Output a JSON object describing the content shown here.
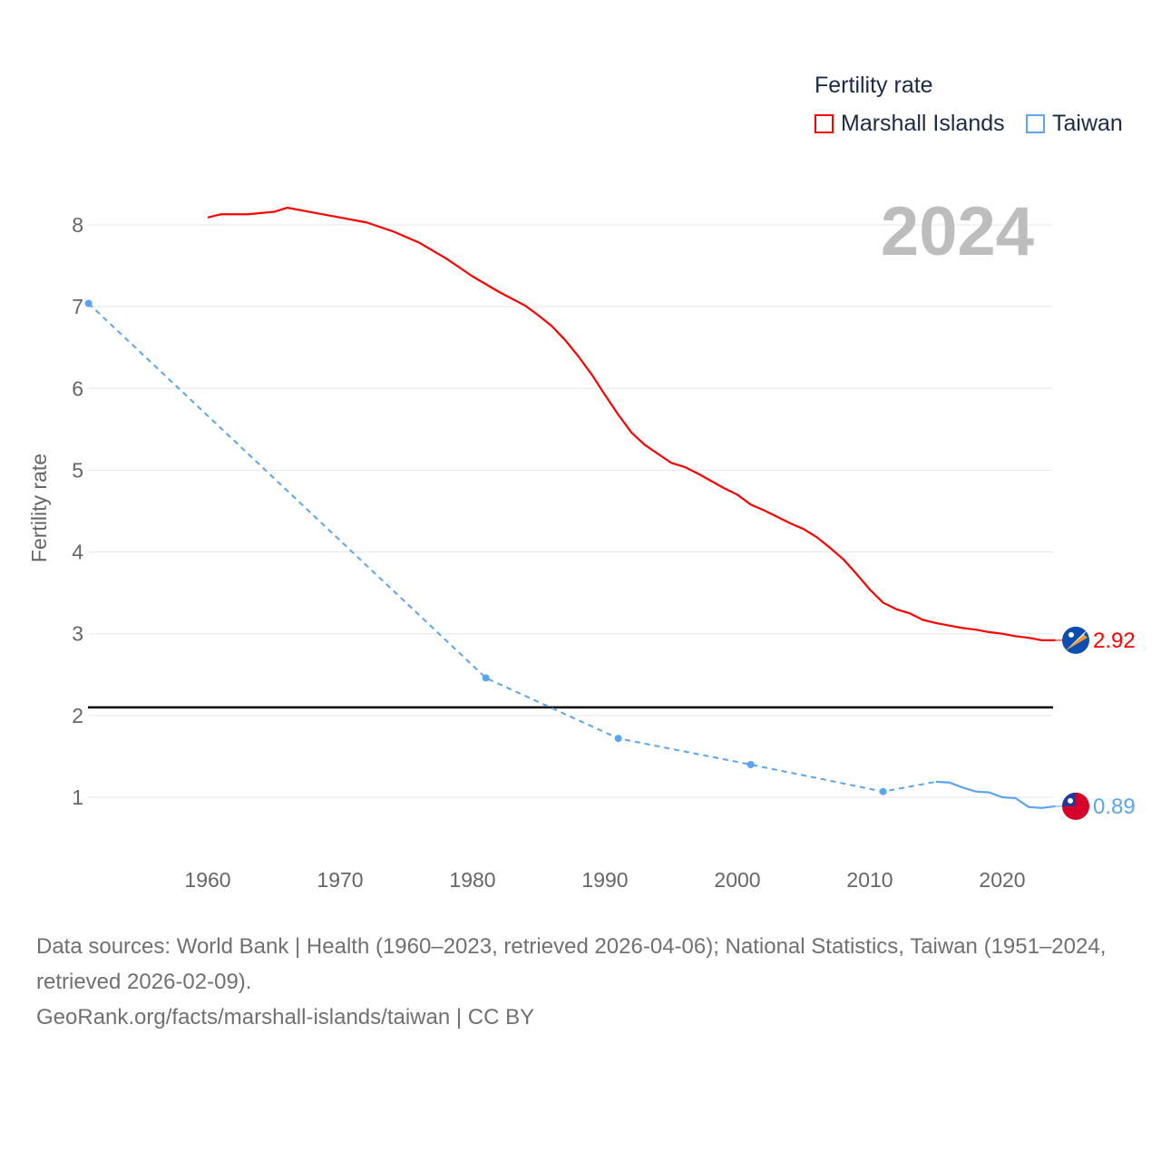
{
  "chart_data": {
    "type": "line",
    "title": "",
    "ylabel": "Fertility rate",
    "xlabel": "",
    "xlim": [
      1951,
      2024
    ],
    "ylim": [
      0,
      8.6
    ],
    "x_ticks": [
      1960,
      1970,
      1980,
      1990,
      2000,
      2010,
      2020
    ],
    "y_ticks": [
      1,
      2,
      3,
      4,
      5,
      6,
      7,
      8
    ],
    "grid": true,
    "legend_title": "Fertility rate",
    "legend_position": "top-right",
    "year_label": "2024",
    "reference_line": {
      "y": 2.1,
      "color": "#000000"
    },
    "series": [
      {
        "name": "Marshall Islands",
        "color": "#ff0000",
        "end_label": "2.92",
        "flag": "marshall-islands-flag",
        "x": [
          1960,
          1961,
          1963,
          1965,
          1966,
          1968,
          1970,
          1972,
          1974,
          1976,
          1978,
          1980,
          1982,
          1984,
          1985,
          1986,
          1987,
          1988,
          1989,
          1990,
          1991,
          1992,
          1993,
          1994,
          1995,
          1996,
          1997,
          1998,
          1999,
          2000,
          2001,
          2002,
          2003,
          2004,
          2005,
          2006,
          2007,
          2008,
          2009,
          2010,
          2011,
          2012,
          2013,
          2014,
          2015,
          2016,
          2017,
          2018,
          2019,
          2020,
          2021,
          2022,
          2023,
          2024
        ],
        "y": [
          8.09,
          8.13,
          8.13,
          8.16,
          8.21,
          8.15,
          8.09,
          8.03,
          7.92,
          7.78,
          7.59,
          7.37,
          7.18,
          7.01,
          6.89,
          6.76,
          6.59,
          6.39,
          6.17,
          5.92,
          5.68,
          5.46,
          5.31,
          5.2,
          5.09,
          5.04,
          4.96,
          4.87,
          4.78,
          4.7,
          4.58,
          4.51,
          4.43,
          4.35,
          4.28,
          4.18,
          4.05,
          3.91,
          3.73,
          3.54,
          3.38,
          3.3,
          3.25,
          3.17,
          3.13,
          3.1,
          3.07,
          3.05,
          3.02,
          3.0,
          2.97,
          2.95,
          2.92,
          2.92
        ]
      },
      {
        "name": "Taiwan",
        "color": "#5ba4ee",
        "end_label": "0.89",
        "flag": "taiwan-flag",
        "sparse_points_x": [
          1951,
          1981,
          1991,
          2001,
          2011,
          2015
        ],
        "sparse_points_y": [
          7.04,
          2.46,
          1.72,
          1.4,
          1.07,
          1.19
        ],
        "x": [
          2015,
          2016,
          2017,
          2018,
          2019,
          2020,
          2021,
          2022,
          2023,
          2024
        ],
        "y": [
          1.19,
          1.18,
          1.12,
          1.07,
          1.06,
          1.0,
          0.99,
          0.88,
          0.87,
          0.89
        ]
      }
    ]
  },
  "footer": {
    "sources": "Data sources: World Bank | Health (1960–2023, retrieved 2026-04-06); National Statistics, Taiwan (1951–2024, retrieved 2026-02-09).",
    "credit": "GeoRank.org/facts/marshall-islands/taiwan | CC BY"
  }
}
